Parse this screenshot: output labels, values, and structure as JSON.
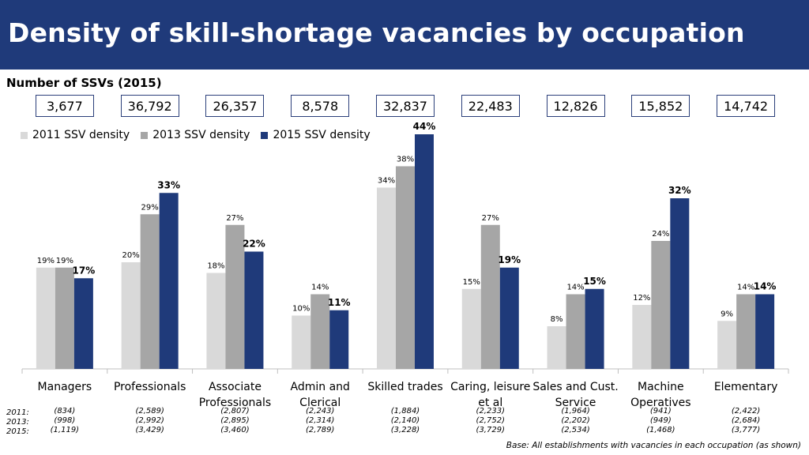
{
  "title": "Density of skill-shortage vacancies by occupation",
  "subtitle": "Number of SSVs (2015)",
  "base_note": "Base: All establishments with vacancies in each occupation (as shown)",
  "colors": {
    "header": "#1f3a7a",
    "s2011": "#d9d9d9",
    "s2013": "#a6a6a6",
    "s2015": "#1f3a7a"
  },
  "chart_data": {
    "type": "bar",
    "categories": [
      "Managers",
      "Professionals",
      "Associate Professionals",
      "Admin and Clerical",
      "Skilled trades",
      "Caring, leisure et al",
      "Sales and Cust. Service",
      "Machine Operatives",
      "Elementary"
    ],
    "series": [
      {
        "name": "2011 SSV density",
        "values": [
          19,
          20,
          18,
          10,
          34,
          15,
          8,
          12,
          9
        ],
        "labels": [
          "19%",
          "20%",
          "18%",
          "10%",
          "34%",
          "15%",
          "8%",
          "12%",
          "9%"
        ]
      },
      {
        "name": "2013 SSV density",
        "values": [
          19,
          29,
          27,
          14,
          38,
          27,
          14,
          24,
          14
        ],
        "labels": [
          "19%",
          "29%",
          "27%",
          "14%",
          "38%",
          "27%",
          "14%",
          "24%",
          "14%"
        ]
      },
      {
        "name": "2015 SSV density",
        "values": [
          17,
          33,
          22,
          11,
          44,
          19,
          15,
          32,
          14
        ],
        "labels": [
          "17%",
          "33%",
          "22%",
          "11%",
          "44%",
          "19%",
          "15%",
          "32%",
          "14%"
        ]
      }
    ],
    "ssv_counts_2015": [
      "3,677",
      "36,792",
      "26,357",
      "8,578",
      "32,837",
      "22,483",
      "12,826",
      "15,852",
      "14,742"
    ],
    "ylim": [
      0,
      50
    ],
    "legend_position": "top-left",
    "grid": false
  },
  "base_sizes": {
    "year_labels": [
      "2011:",
      "2013:",
      "2015:"
    ],
    "values": [
      [
        "(834)",
        "(998)",
        "(1,119)"
      ],
      [
        "(2,589)",
        "(2,992)",
        "(3,429)"
      ],
      [
        "(2,807)",
        "(2,895)",
        "(3,460)"
      ],
      [
        "(2,243)",
        "(2,314)",
        "(2,789)"
      ],
      [
        "(1,884)",
        "(2,140)",
        "(3,228)"
      ],
      [
        "(2,233)",
        "(2,752)",
        "(3,729)"
      ],
      [
        "(1,964)",
        "(2,202)",
        "(2,534)"
      ],
      [
        "(941)",
        "(949)",
        "(1,468)"
      ],
      [
        "(2,422)",
        "(2,684)",
        "(3,777)"
      ]
    ]
  }
}
